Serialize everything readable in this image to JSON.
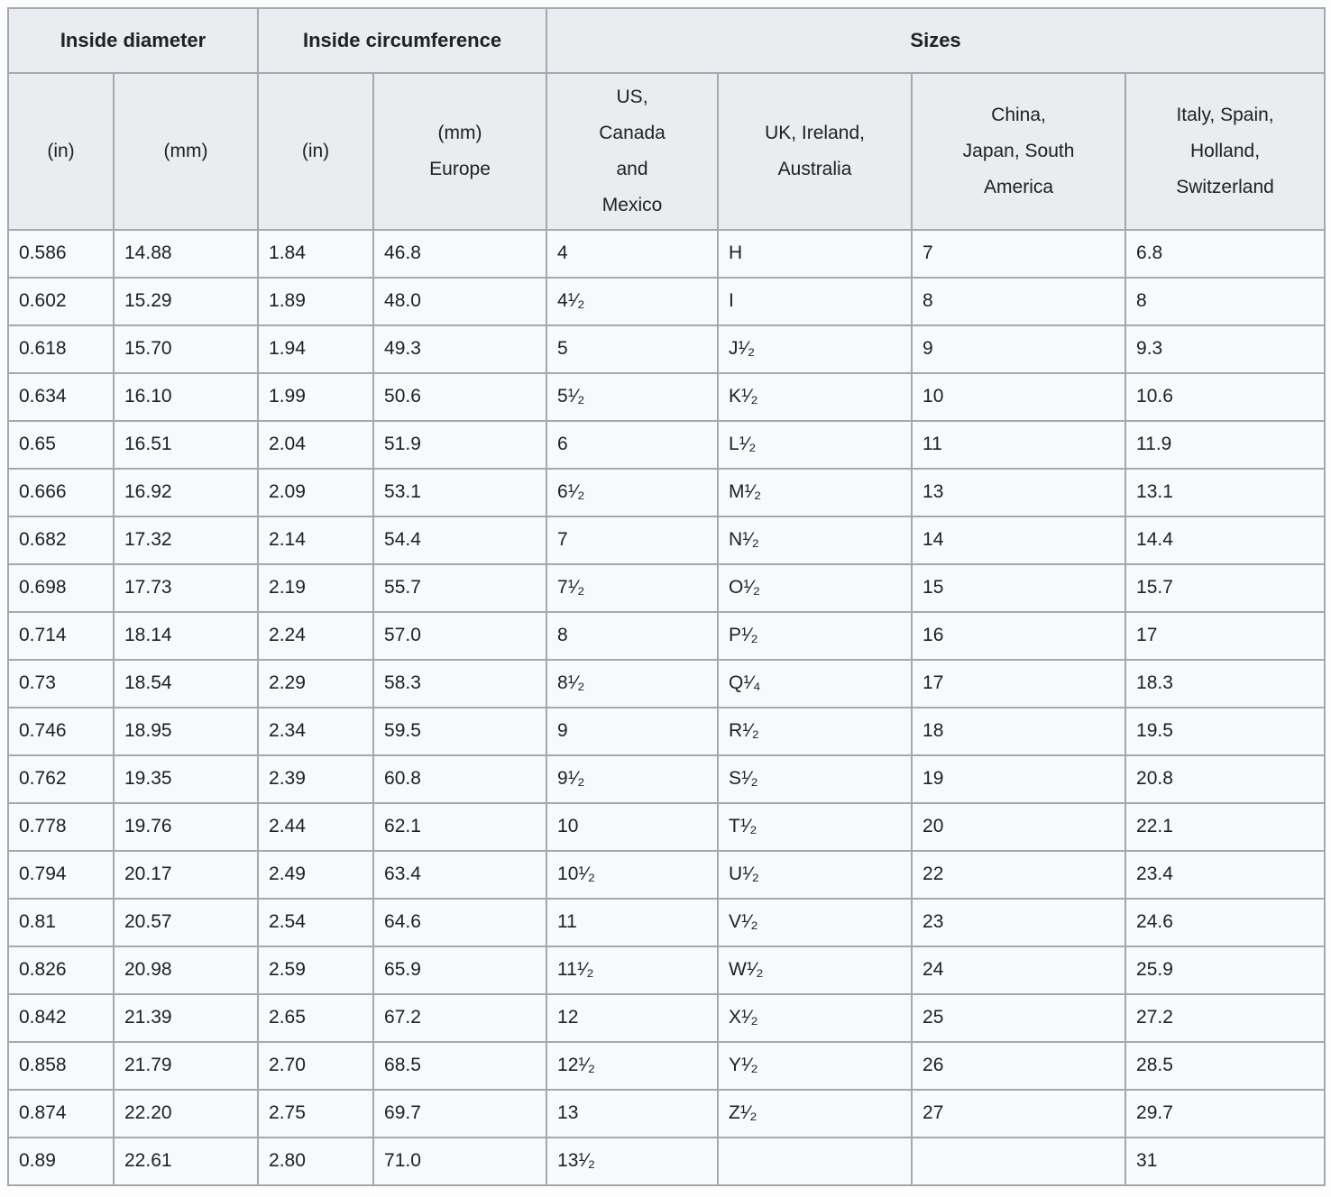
{
  "colors": {
    "header_bg": "#eaecf0",
    "cell_bg": "#f8f9fa",
    "border": "#a2a9b1",
    "text": "#202122"
  },
  "chart_data": {
    "type": "table",
    "header_groups": [
      {
        "label": "Inside diameter",
        "colspan": 2
      },
      {
        "label": "Inside circumference",
        "colspan": 2
      },
      {
        "label": "Sizes",
        "colspan": 4
      }
    ],
    "columns": [
      "(in)",
      "(mm)",
      "(in)",
      "(mm)\nEurope",
      "US,\nCanada\nand\nMexico",
      "UK, Ireland,\nAustralia",
      "China,\nJapan, South\nAmerica",
      "Italy, Spain,\nHolland,\nSwitzerland"
    ],
    "rows": [
      [
        "0.586",
        "14.88",
        "1.84",
        "46.8",
        "4",
        "H",
        "7",
        "6.8"
      ],
      [
        "0.602",
        "15.29",
        "1.89",
        "48.0",
        "4¹⁄₂",
        "I",
        "8",
        "8"
      ],
      [
        "0.618",
        "15.70",
        "1.94",
        "49.3",
        "5",
        "J¹⁄₂",
        "9",
        "9.3"
      ],
      [
        "0.634",
        "16.10",
        "1.99",
        "50.6",
        "5¹⁄₂",
        "K¹⁄₂",
        "10",
        "10.6"
      ],
      [
        "0.65",
        "16.51",
        "2.04",
        "51.9",
        "6",
        "L¹⁄₂",
        "11",
        "11.9"
      ],
      [
        "0.666",
        "16.92",
        "2.09",
        "53.1",
        "6¹⁄₂",
        "M¹⁄₂",
        "13",
        "13.1"
      ],
      [
        "0.682",
        "17.32",
        "2.14",
        "54.4",
        "7",
        "N¹⁄₂",
        "14",
        "14.4"
      ],
      [
        "0.698",
        "17.73",
        "2.19",
        "55.7",
        "7¹⁄₂",
        "O¹⁄₂",
        "15",
        "15.7"
      ],
      [
        "0.714",
        "18.14",
        "2.24",
        "57.0",
        "8",
        "P¹⁄₂",
        "16",
        "17"
      ],
      [
        "0.73",
        "18.54",
        "2.29",
        "58.3",
        "8¹⁄₂",
        "Q¹⁄₄",
        "17",
        "18.3"
      ],
      [
        "0.746",
        "18.95",
        "2.34",
        "59.5",
        "9",
        "R¹⁄₂",
        "18",
        "19.5"
      ],
      [
        "0.762",
        "19.35",
        "2.39",
        "60.8",
        "9¹⁄₂",
        "S¹⁄₂",
        "19",
        "20.8"
      ],
      [
        "0.778",
        "19.76",
        "2.44",
        "62.1",
        "10",
        "T¹⁄₂",
        "20",
        "22.1"
      ],
      [
        "0.794",
        "20.17",
        "2.49",
        "63.4",
        "10¹⁄₂",
        "U¹⁄₂",
        "22",
        "23.4"
      ],
      [
        "0.81",
        "20.57",
        "2.54",
        "64.6",
        "11",
        "V¹⁄₂",
        "23",
        "24.6"
      ],
      [
        "0.826",
        "20.98",
        "2.59",
        "65.9",
        "11¹⁄₂",
        "W¹⁄₂",
        "24",
        "25.9"
      ],
      [
        "0.842",
        "21.39",
        "2.65",
        "67.2",
        "12",
        "X¹⁄₂",
        "25",
        "27.2"
      ],
      [
        "0.858",
        "21.79",
        "2.70",
        "68.5",
        "12¹⁄₂",
        "Y¹⁄₂",
        "26",
        "28.5"
      ],
      [
        "0.874",
        "22.20",
        "2.75",
        "69.7",
        "13",
        "Z¹⁄₂",
        "27",
        "29.7"
      ],
      [
        "0.89",
        "22.61",
        "2.80",
        "71.0",
        "13¹⁄₂",
        "",
        "",
        "31"
      ]
    ]
  }
}
